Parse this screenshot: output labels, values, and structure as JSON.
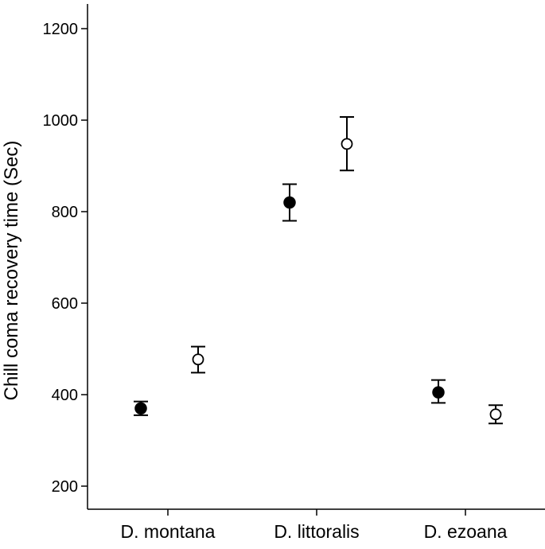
{
  "chart_data": {
    "type": "scatter",
    "title": "",
    "xlabel": "",
    "ylabel": "Chill coma recovery time (Sec)",
    "ylim": [
      150,
      1250
    ],
    "yticks": [
      200,
      400,
      600,
      800,
      1000,
      1200
    ],
    "grid": false,
    "categories": [
      "D. montana",
      "D. littoralis",
      "D. ezoana"
    ],
    "series": [
      {
        "marker": "filled-circle",
        "values": [
          370,
          820,
          405
        ],
        "err_low": [
          355,
          780,
          382
        ],
        "err_high": [
          385,
          860,
          432
        ]
      },
      {
        "marker": "open-circle",
        "values": [
          477,
          948,
          357
        ],
        "err_low": [
          448,
          890,
          337
        ],
        "err_high": [
          505,
          1007,
          377
        ]
      }
    ]
  }
}
